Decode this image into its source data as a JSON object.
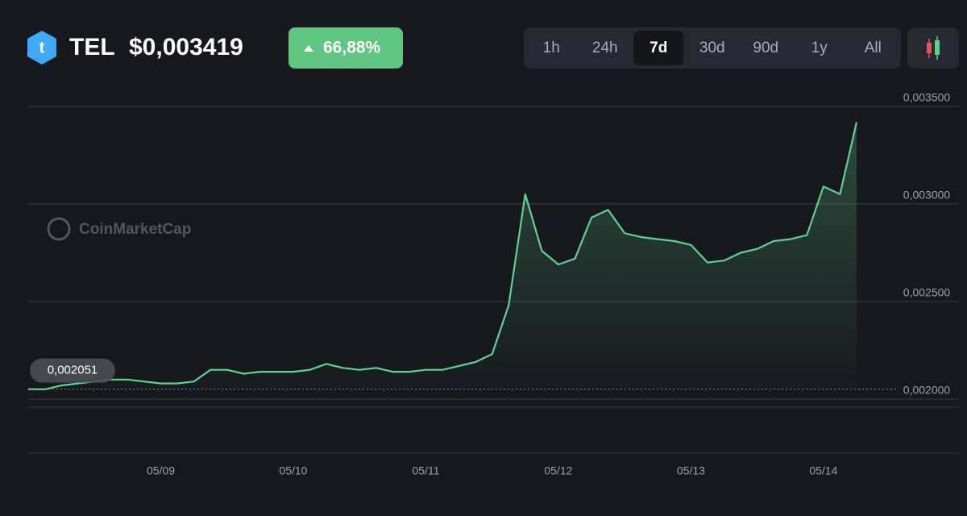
{
  "header": {
    "symbol": "TEL",
    "price": "$0,003419",
    "change": "66,88%",
    "ranges": [
      "1h",
      "24h",
      "7d",
      "30d",
      "90d",
      "1y",
      "All"
    ],
    "active_range": 2,
    "watermark": "CoinMarketCap"
  },
  "chart_data": {
    "type": "line",
    "color": "#5fd38d",
    "categories": [
      null,
      null,
      null,
      null,
      null,
      null,
      null,
      null,
      "05/09",
      null,
      null,
      null,
      null,
      null,
      null,
      null,
      "05/10",
      null,
      null,
      null,
      null,
      null,
      null,
      null,
      "05/11",
      null,
      null,
      null,
      null,
      null,
      null,
      null,
      "05/12",
      null,
      null,
      null,
      null,
      null,
      null,
      null,
      "05/13",
      null,
      null,
      null,
      null,
      null,
      null,
      null,
      "05/14",
      null,
      null
    ],
    "values": [
      0.002051,
      0.00205,
      0.00207,
      0.00208,
      0.00209,
      0.0021,
      0.0021,
      0.00209,
      0.00208,
      0.00208,
      0.00209,
      0.00215,
      0.00215,
      0.00213,
      0.00214,
      0.00214,
      0.00214,
      0.00215,
      0.00218,
      0.00216,
      0.00215,
      0.00216,
      0.00214,
      0.00214,
      0.00215,
      0.00215,
      0.00217,
      0.00219,
      0.00223,
      0.00248,
      0.00305,
      0.00276,
      0.00269,
      0.00272,
      0.00293,
      0.00297,
      0.00285,
      0.00283,
      0.00282,
      0.00281,
      0.00279,
      0.0027,
      0.00271,
      0.00275,
      0.00277,
      0.00281,
      0.00282,
      0.00284,
      0.00309,
      0.00305,
      0.003419
    ],
    "start_label": "0,002051",
    "ylim": [
      0.002,
      0.0035
    ],
    "yticks": [
      {
        "value": 0.002,
        "label": "0,002000"
      },
      {
        "value": 0.0025,
        "label": "0,002500"
      },
      {
        "value": 0.003,
        "label": "0,003000"
      },
      {
        "value": 0.0035,
        "label": "0,003500"
      }
    ],
    "grid": true
  }
}
